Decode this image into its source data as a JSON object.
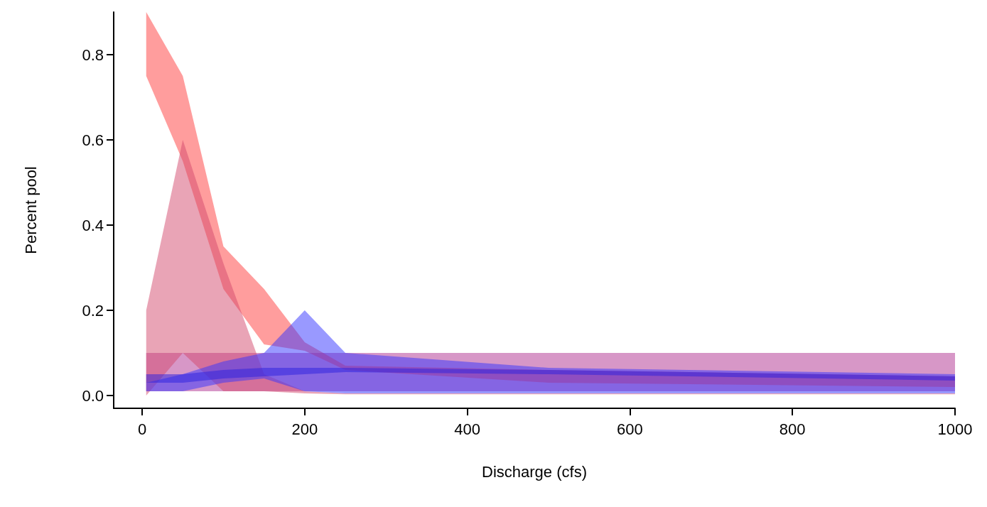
{
  "chart_data": {
    "type": "line",
    "xlabel": "Discharge (cfs)",
    "ylabel": "Percent pool",
    "x": [
      5,
      50,
      100,
      150,
      200,
      250,
      500,
      1000
    ],
    "xlim": [
      -35,
      1000
    ],
    "xticks": [
      0,
      200,
      400,
      600,
      800,
      1000
    ],
    "ylim": [
      -0.03,
      0.9
    ],
    "yticks": [
      {
        "value": 0,
        "label": "0.0"
      },
      0.2,
      0.4,
      0.6,
      0.8
    ],
    "grid": false,
    "series": [
      {
        "color": "#b03090",
        "values": [
          null,
          null,
          null,
          null,
          null,
          null,
          null,
          null
        ],
        "upper": [
          0.1,
          0.1,
          0.1,
          0.1,
          0.1,
          0.1,
          0.1,
          0.1
        ],
        "lower": [
          0.01,
          0.01,
          0.01,
          0.01,
          0.01,
          0.01,
          0.01,
          0.01
        ]
      },
      {
        "color": "#ff3b3b",
        "values": [
          null,
          null,
          null,
          null,
          null,
          null,
          null,
          null
        ],
        "upper": [
          0.9,
          0.75,
          0.35,
          0.25,
          0.125,
          0.07,
          0.06,
          0.045
        ],
        "lower": [
          0.75,
          0.55,
          0.25,
          0.12,
          0.105,
          0.06,
          0.03,
          0.02
        ]
      },
      {
        "color": "#d44a6e",
        "values": [
          null,
          null,
          null,
          null,
          null,
          null,
          null,
          null
        ],
        "upper": [
          0.2,
          0.6,
          0.31,
          0.05,
          0.01,
          0.005,
          0.005,
          0.005
        ],
        "lower": [
          0,
          0.1,
          0.01,
          0.01,
          0.005,
          0.003,
          0.003,
          0.003
        ]
      },
      {
        "color": "#3333ff",
        "values": [
          null,
          null,
          null,
          null,
          null,
          null,
          null,
          null
        ],
        "upper": [
          0.03,
          0.05,
          0.08,
          0.1,
          0.2,
          0.1,
          0.065,
          0.05
        ],
        "lower": [
          0.01,
          0.01,
          0.03,
          0.04,
          0.01,
          0.005,
          0.005,
          0.005
        ]
      },
      {
        "color": "#2a1fe0",
        "values": [
          null,
          null,
          null,
          null,
          null,
          null,
          null,
          null
        ],
        "upper": [
          0.05,
          0.05,
          0.06,
          0.065,
          0.065,
          0.065,
          0.06,
          0.045
        ],
        "lower": [
          0.03,
          0.03,
          0.04,
          0.045,
          0.05,
          0.055,
          0.05,
          0.035
        ]
      }
    ]
  }
}
